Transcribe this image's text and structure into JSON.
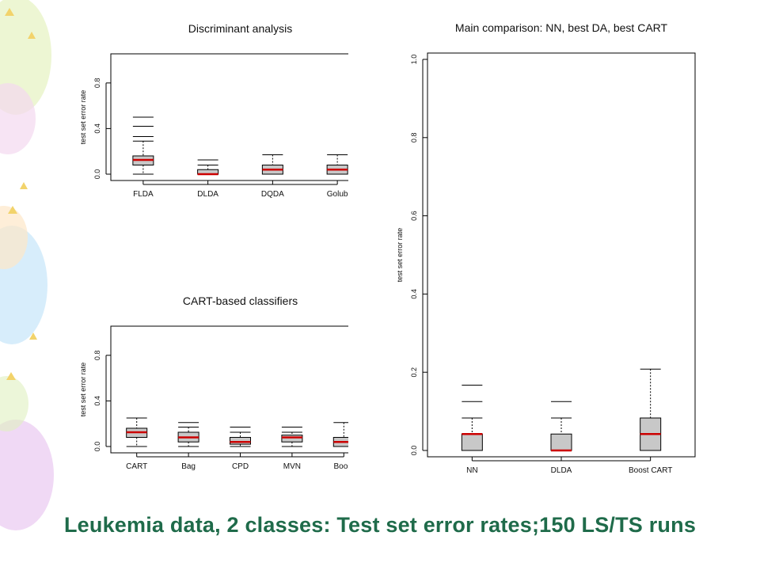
{
  "slide_title": "Leukemia data, 2 classes: Test set error rates;150 LS/TS runs",
  "colors": {
    "box_fill": "#c8c8c8",
    "median": "#cc0000",
    "title_text": "#1f6b4a"
  },
  "chart_data": [
    {
      "type": "boxplot",
      "title": "Discriminant analysis",
      "ylabel": "test set error rate",
      "ylim": [
        0,
        1
      ],
      "yticks": [
        "0.0",
        "0.4",
        "0.8"
      ],
      "grid": false,
      "categories": [
        "FLDA",
        "DLDA",
        "DQDA",
        "Golub"
      ],
      "boxes": [
        {
          "whisker_low": 0.0,
          "q1": 0.08,
          "median": 0.125,
          "q3": 0.16,
          "whisker_high": 0.29,
          "outliers": [
            0.33,
            0.42,
            0.5
          ]
        },
        {
          "whisker_low": 0.0,
          "q1": 0.0,
          "median": 0.0,
          "q3": 0.04,
          "whisker_high": 0.08,
          "outliers": [
            0.125
          ]
        },
        {
          "whisker_low": 0.0,
          "q1": 0.0,
          "median": 0.04,
          "q3": 0.08,
          "whisker_high": 0.17,
          "outliers": []
        },
        {
          "whisker_low": 0.0,
          "q1": 0.0,
          "median": 0.04,
          "q3": 0.08,
          "whisker_high": 0.17,
          "outliers": []
        }
      ]
    },
    {
      "type": "boxplot",
      "title": "CART-based classifiers",
      "ylabel": "test set error rate",
      "ylim": [
        0,
        1
      ],
      "yticks": [
        "0.0",
        "0.4",
        "0.8"
      ],
      "grid": false,
      "categories": [
        "CART",
        "Bag",
        "CPD",
        "MVN",
        "Boost"
      ],
      "boxes": [
        {
          "whisker_low": 0.0,
          "q1": 0.08,
          "median": 0.125,
          "q3": 0.16,
          "whisker_high": 0.25,
          "outliers": []
        },
        {
          "whisker_low": 0.0,
          "q1": 0.04,
          "median": 0.08,
          "q3": 0.125,
          "whisker_high": 0.17,
          "outliers": [
            0.21
          ]
        },
        {
          "whisker_low": 0.0,
          "q1": 0.02,
          "median": 0.04,
          "q3": 0.08,
          "whisker_high": 0.125,
          "outliers": [
            0.17
          ]
        },
        {
          "whisker_low": 0.0,
          "q1": 0.04,
          "median": 0.08,
          "q3": 0.1,
          "whisker_high": 0.125,
          "outliers": [
            0.17
          ]
        },
        {
          "whisker_low": 0.0,
          "q1": 0.0,
          "median": 0.04,
          "q3": 0.08,
          "whisker_high": 0.21,
          "outliers": []
        }
      ]
    },
    {
      "type": "boxplot",
      "title": "Main comparison: NN, best DA, best CART",
      "ylabel": "test set error rate",
      "ylim": [
        0,
        1
      ],
      "yticks": [
        "0.0",
        "0.2",
        "0.4",
        "0.6",
        "0.8",
        "1.0"
      ],
      "grid": false,
      "categories": [
        "NN",
        "DLDA",
        "Boost CART"
      ],
      "boxes": [
        {
          "whisker_low": 0.0,
          "q1": 0.0,
          "median": 0.042,
          "q3": 0.042,
          "whisker_high": 0.083,
          "outliers": [
            0.125,
            0.167
          ]
        },
        {
          "whisker_low": 0.0,
          "q1": 0.0,
          "median": 0.0,
          "q3": 0.042,
          "whisker_high": 0.083,
          "outliers": [
            0.125
          ]
        },
        {
          "whisker_low": 0.0,
          "q1": 0.0,
          "median": 0.042,
          "q3": 0.083,
          "whisker_high": 0.208,
          "outliers": []
        }
      ]
    }
  ]
}
